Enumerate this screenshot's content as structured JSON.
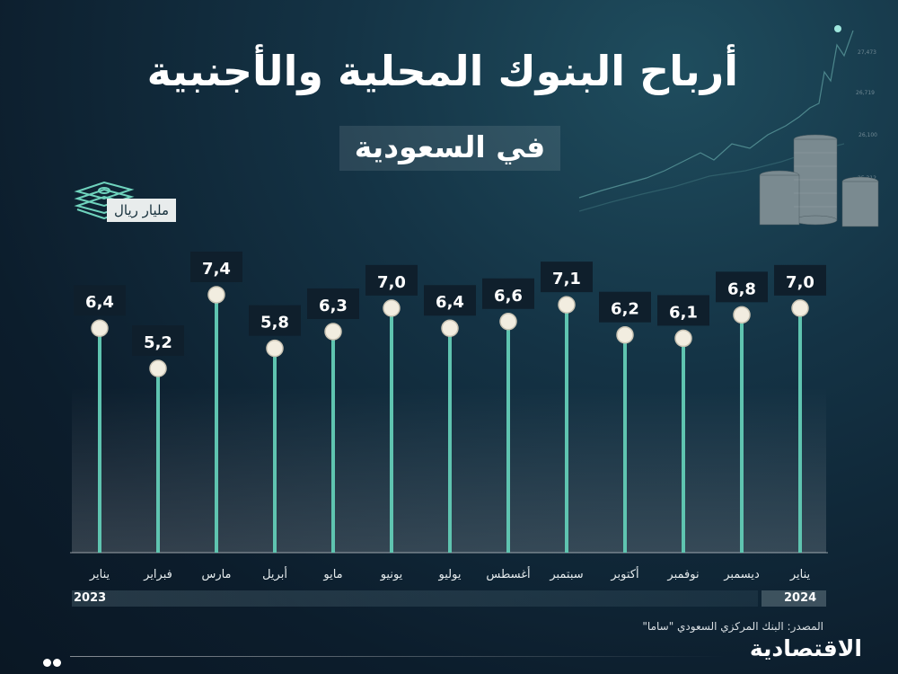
{
  "title": "أرباح البنوك المحلية والأجنبية",
  "subtitle": "في السعودية",
  "unit": "مليار ريال",
  "source": "المصدر: البنك المركزي السعودي \"ساما\"",
  "brand": "الاقتصادية",
  "years": {
    "left": "2023",
    "right": "2024"
  },
  "colors": {
    "stem": "#5fc4b0",
    "marker": "#f2ede0",
    "label_bg": "#0f1f2c",
    "label_text": "#ffffff"
  },
  "chart_data": {
    "type": "bar",
    "categories": [
      "يناير",
      "فبراير",
      "مارس",
      "أبريل",
      "مايو",
      "يونيو",
      "يوليو",
      "أغسطس",
      "سبتمبر",
      "أكتوبر",
      "نوفمبر",
      "ديسمبر",
      "يناير"
    ],
    "values": [
      6.4,
      5.2,
      7.4,
      5.8,
      6.3,
      7.0,
      6.4,
      6.6,
      7.1,
      6.2,
      6.1,
      6.8,
      7.0
    ],
    "value_labels": [
      "6,4",
      "5,2",
      "7,4",
      "5,8",
      "6,3",
      "7,0",
      "6,4",
      "6,6",
      "7,1",
      "6,2",
      "6,1",
      "6,8",
      "7,0"
    ],
    "ylabel": "مليار ريال",
    "grid": false
  }
}
